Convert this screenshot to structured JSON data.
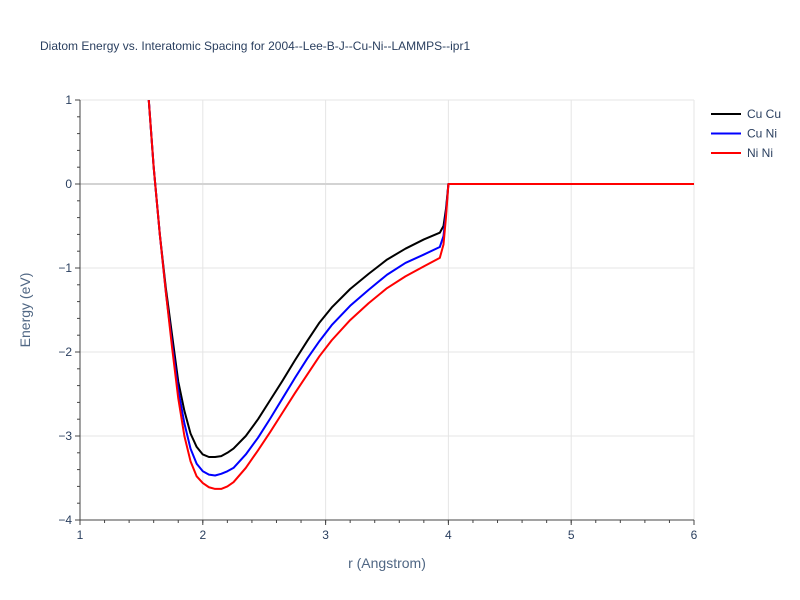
{
  "chart_data": {
    "type": "line",
    "title": "Diatom Energy vs. Interatomic Spacing for 2004--Lee-B-J--Cu-Ni--LAMMPS--ipr1",
    "xlabel": "r (Angstrom)",
    "ylabel": "Energy (eV)",
    "xlim": [
      1,
      6
    ],
    "ylim": [
      -4,
      1
    ],
    "xticks": [
      1,
      2,
      3,
      4,
      5,
      6
    ],
    "yticks": [
      1,
      0,
      -1,
      -2,
      -3,
      -4
    ],
    "ytick_labels": [
      "1",
      "0",
      "−1",
      "−2",
      "−3",
      "−4"
    ],
    "grid": true,
    "legend_position": "top-right",
    "series": [
      {
        "name": "Cu Cu",
        "color": "#000000",
        "x": [
          1.56,
          1.6,
          1.65,
          1.7,
          1.75,
          1.8,
          1.85,
          1.9,
          1.95,
          2.0,
          2.05,
          2.1,
          2.15,
          2.2,
          2.25,
          2.35,
          2.45,
          2.55,
          2.65,
          2.75,
          2.85,
          2.95,
          3.05,
          3.2,
          3.35,
          3.5,
          3.65,
          3.8,
          3.93,
          3.96,
          3.98,
          4.0,
          4.5,
          5.0,
          5.5,
          6.0
        ],
        "y": [
          1.0,
          0.2,
          -0.6,
          -1.25,
          -1.8,
          -2.35,
          -2.7,
          -2.97,
          -3.13,
          -3.22,
          -3.25,
          -3.25,
          -3.24,
          -3.2,
          -3.15,
          -3.0,
          -2.8,
          -2.57,
          -2.34,
          -2.1,
          -1.87,
          -1.65,
          -1.47,
          -1.25,
          -1.07,
          -0.9,
          -0.77,
          -0.66,
          -0.58,
          -0.5,
          -0.3,
          0.0,
          0.0,
          0.0,
          0.0,
          0.0
        ]
      },
      {
        "name": "Cu Ni",
        "color": "#0000ff",
        "x": [
          1.56,
          1.6,
          1.65,
          1.7,
          1.75,
          1.8,
          1.85,
          1.9,
          1.95,
          2.0,
          2.05,
          2.1,
          2.15,
          2.2,
          2.25,
          2.35,
          2.45,
          2.55,
          2.65,
          2.75,
          2.85,
          2.95,
          3.05,
          3.2,
          3.35,
          3.5,
          3.65,
          3.8,
          3.93,
          3.96,
          3.98,
          4.0,
          4.5,
          5.0,
          5.5,
          6.0
        ],
        "y": [
          1.0,
          0.2,
          -0.6,
          -1.3,
          -1.9,
          -2.45,
          -2.85,
          -3.15,
          -3.33,
          -3.42,
          -3.46,
          -3.47,
          -3.45,
          -3.42,
          -3.38,
          -3.22,
          -3.02,
          -2.79,
          -2.55,
          -2.31,
          -2.08,
          -1.87,
          -1.68,
          -1.45,
          -1.26,
          -1.08,
          -0.94,
          -0.84,
          -0.75,
          -0.62,
          -0.35,
          0.0,
          0.0,
          0.0,
          0.0,
          0.0
        ]
      },
      {
        "name": "Ni Ni",
        "color": "#ff0000",
        "x": [
          1.56,
          1.6,
          1.65,
          1.7,
          1.75,
          1.8,
          1.85,
          1.9,
          1.95,
          2.0,
          2.05,
          2.1,
          2.15,
          2.2,
          2.25,
          2.35,
          2.45,
          2.55,
          2.65,
          2.75,
          2.85,
          2.95,
          3.05,
          3.2,
          3.35,
          3.5,
          3.65,
          3.8,
          3.93,
          3.96,
          3.98,
          4.0,
          4.5,
          5.0,
          5.5,
          6.0
        ],
        "y": [
          1.0,
          0.2,
          -0.6,
          -1.3,
          -1.95,
          -2.55,
          -3.0,
          -3.3,
          -3.48,
          -3.56,
          -3.61,
          -3.63,
          -3.63,
          -3.6,
          -3.55,
          -3.38,
          -3.17,
          -2.95,
          -2.72,
          -2.49,
          -2.27,
          -2.05,
          -1.86,
          -1.62,
          -1.42,
          -1.24,
          -1.1,
          -0.98,
          -0.88,
          -0.72,
          -0.4,
          0.0,
          0.0,
          0.0,
          0.0,
          0.0
        ]
      }
    ]
  }
}
